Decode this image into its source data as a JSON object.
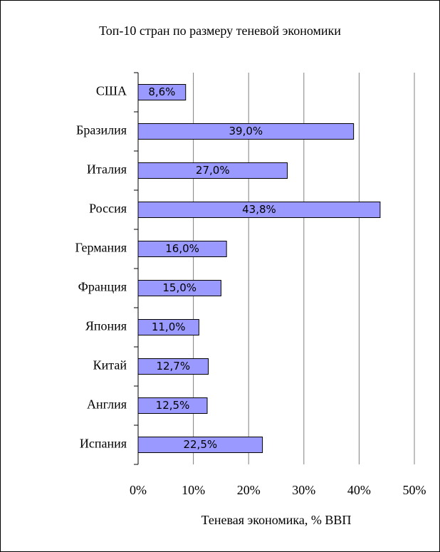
{
  "chart_data": {
    "type": "barh",
    "title": "Топ-10 стран по размеру теневой экономики",
    "xlabel": "Теневая экономика, % ВВП",
    "categories": [
      "США",
      "Бразилия",
      "Италия",
      "Россия",
      "Германия",
      "Франция",
      "Япония",
      "Китай",
      "Англия",
      "Испания"
    ],
    "values": [
      8.6,
      39.0,
      27.0,
      43.8,
      16.0,
      15.0,
      11.0,
      12.7,
      12.5,
      22.5
    ],
    "value_labels": [
      "8,6%",
      "39,0%",
      "27,0%",
      "43,8%",
      "16,0%",
      "15,0%",
      "11,0%",
      "12,7%",
      "12,5%",
      "22,5%"
    ],
    "color": "#9999ff",
    "xlim": [
      0,
      50
    ],
    "xticks": [
      {
        "value": 0,
        "label": "0%"
      },
      {
        "value": 10,
        "label": "10%"
      },
      {
        "value": 20,
        "label": "20%"
      },
      {
        "value": 30,
        "label": "30%"
      },
      {
        "value": 40,
        "label": "40%"
      },
      {
        "value": 50,
        "label": "50%"
      }
    ],
    "grid": true
  }
}
